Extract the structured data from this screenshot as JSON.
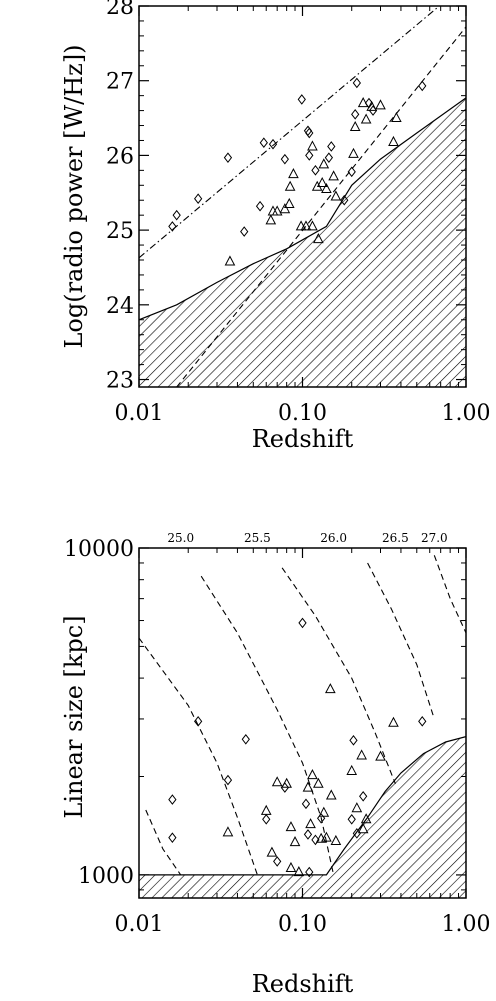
{
  "chart_data": [
    {
      "type": "scatter",
      "title": "",
      "xlabel": "Redshift",
      "ylabel": "Log(radio power [W/Hz])",
      "x_scale": "log",
      "xlim": [
        0.01,
        1.0
      ],
      "ylim": [
        22.9,
        28.0
      ],
      "x_ticks": [
        0.01,
        0.1,
        1.0
      ],
      "x_tick_labels": [
        "0.01",
        "0.10",
        "1.00"
      ],
      "y_ticks": [
        23,
        24,
        25,
        26,
        27,
        28
      ],
      "y_tick_labels": [
        "23",
        "24",
        "25",
        "26",
        "27",
        "28"
      ],
      "series": [
        {
          "marker": "diamond",
          "points": [
            [
              0.016,
              25.05
            ],
            [
              0.017,
              25.2
            ],
            [
              0.023,
              25.42
            ],
            [
              0.035,
              25.97
            ],
            [
              0.044,
              24.98
            ],
            [
              0.055,
              25.32
            ],
            [
              0.058,
              26.17
            ],
            [
              0.066,
              26.15
            ],
            [
              0.078,
              25.95
            ],
            [
              0.099,
              26.75
            ],
            [
              0.108,
              26.33
            ],
            [
              0.11,
              26.3
            ],
            [
              0.11,
              26.0
            ],
            [
              0.12,
              25.8
            ],
            [
              0.145,
              25.97
            ],
            [
              0.15,
              26.12
            ],
            [
              0.18,
              25.4
            ],
            [
              0.2,
              25.78
            ],
            [
              0.21,
              26.55
            ],
            [
              0.215,
              26.97
            ],
            [
              0.255,
              26.7
            ],
            [
              0.27,
              26.6
            ],
            [
              0.54,
              26.93
            ]
          ]
        },
        {
          "marker": "triangle",
          "points": [
            [
              0.036,
              24.58
            ],
            [
              0.064,
              25.13
            ],
            [
              0.066,
              25.25
            ],
            [
              0.07,
              25.25
            ],
            [
              0.078,
              25.28
            ],
            [
              0.083,
              25.35
            ],
            [
              0.084,
              25.58
            ],
            [
              0.088,
              25.75
            ],
            [
              0.098,
              25.05
            ],
            [
              0.105,
              25.05
            ],
            [
              0.115,
              25.05
            ],
            [
              0.115,
              26.12
            ],
            [
              0.123,
              25.58
            ],
            [
              0.125,
              24.88
            ],
            [
              0.132,
              25.63
            ],
            [
              0.135,
              25.88
            ],
            [
              0.14,
              25.55
            ],
            [
              0.155,
              25.72
            ],
            [
              0.16,
              25.45
            ],
            [
              0.205,
              26.02
            ],
            [
              0.21,
              26.38
            ],
            [
              0.235,
              26.7
            ],
            [
              0.245,
              26.48
            ],
            [
              0.265,
              26.65
            ],
            [
              0.3,
              26.67
            ],
            [
              0.36,
              26.18
            ],
            [
              0.375,
              26.5
            ]
          ]
        }
      ],
      "lines": [
        {
          "style": "dashdot",
          "points": [
            [
              0.01,
              24.63
            ],
            [
              1.0,
              28.3
            ]
          ]
        },
        {
          "style": "dashed",
          "points": [
            [
              0.017,
              22.9
            ],
            [
              1.0,
              27.72
            ]
          ]
        },
        {
          "style": "solid",
          "points": [
            [
              0.01,
              23.8
            ],
            [
              0.017,
              24.0
            ],
            [
              0.03,
              24.3
            ],
            [
              0.05,
              24.55
            ],
            [
              0.08,
              24.75
            ],
            [
              0.14,
              25.05
            ],
            [
              0.2,
              25.6
            ],
            [
              0.3,
              25.95
            ],
            [
              0.5,
              26.3
            ],
            [
              1.0,
              26.77
            ]
          ]
        }
      ],
      "shaded_region": "below solid line (hatched)"
    },
    {
      "type": "scatter",
      "title": "",
      "xlabel": "Redshift",
      "ylabel": "Linear size [kpc]",
      "x_scale": "log",
      "y_scale": "log",
      "xlim": [
        0.01,
        1.0
      ],
      "ylim": [
        850,
        10000
      ],
      "x_ticks": [
        0.01,
        0.1,
        1.0
      ],
      "x_tick_labels": [
        "0.01",
        "0.10",
        "1.00"
      ],
      "y_ticks": [
        1000,
        10000
      ],
      "y_tick_labels": [
        "1000",
        "10000"
      ],
      "contour_labels": [
        {
          "text": "25.0",
          "x": 0.018
        },
        {
          "text": "25.5",
          "x": 0.053
        },
        {
          "text": "26.0",
          "x": 0.155
        },
        {
          "text": "26.5",
          "x": 0.37
        },
        {
          "text": "27.0",
          "x": 0.64
        }
      ],
      "series": [
        {
          "marker": "diamond",
          "points": [
            [
              0.016,
              1700
            ],
            [
              0.016,
              1300
            ],
            [
              0.023,
              2950
            ],
            [
              0.035,
              1950
            ],
            [
              0.045,
              2600
            ],
            [
              0.06,
              1480
            ],
            [
              0.07,
              1100
            ],
            [
              0.078,
              1850
            ],
            [
              0.1,
              5900
            ],
            [
              0.105,
              1650
            ],
            [
              0.108,
              1330
            ],
            [
              0.11,
              1020
            ],
            [
              0.12,
              1280
            ],
            [
              0.13,
              1490
            ],
            [
              0.205,
              2580
            ],
            [
              0.2,
              1480
            ],
            [
              0.215,
              1340
            ],
            [
              0.235,
              1740
            ],
            [
              0.54,
              2950
            ]
          ]
        },
        {
          "marker": "triangle",
          "points": [
            [
              0.035,
              1350
            ],
            [
              0.06,
              1570
            ],
            [
              0.065,
              1170
            ],
            [
              0.07,
              1920
            ],
            [
              0.08,
              1900
            ],
            [
              0.085,
              1400
            ],
            [
              0.085,
              1050
            ],
            [
              0.095,
              1020
            ],
            [
              0.09,
              1260
            ],
            [
              0.108,
              1850
            ],
            [
              0.112,
              1430
            ],
            [
              0.115,
              2020
            ],
            [
              0.125,
              1900
            ],
            [
              0.13,
              1290
            ],
            [
              0.135,
              1550
            ],
            [
              0.14,
              1300
            ],
            [
              0.148,
              3700
            ],
            [
              0.15,
              1750
            ],
            [
              0.16,
              1270
            ],
            [
              0.2,
              2080
            ],
            [
              0.215,
              1600
            ],
            [
              0.23,
              2320
            ],
            [
              0.235,
              1380
            ],
            [
              0.245,
              1480
            ],
            [
              0.3,
              2300
            ],
            [
              0.36,
              2920
            ]
          ]
        }
      ],
      "curves": [
        {
          "style": "dashed",
          "points": [
            [
              0.011,
              1580
            ],
            [
              0.014,
              1200
            ],
            [
              0.018,
              1000
            ]
          ]
        },
        {
          "style": "dashed",
          "points": [
            [
              0.01,
              5300
            ],
            [
              0.02,
              3300
            ],
            [
              0.03,
              2200
            ],
            [
              0.04,
              1500
            ],
            [
              0.053,
              1000
            ]
          ]
        },
        {
          "style": "dashed",
          "points": [
            [
              0.024,
              8200
            ],
            [
              0.04,
              5500
            ],
            [
              0.07,
              3200
            ],
            [
              0.1,
              2200
            ],
            [
              0.13,
              1500
            ],
            [
              0.155,
              1000
            ]
          ]
        },
        {
          "style": "dashed",
          "points": [
            [
              0.075,
              8700
            ],
            [
              0.12,
              6200
            ],
            [
              0.2,
              4000
            ],
            [
              0.28,
              2700
            ],
            [
              0.37,
              1900
            ]
          ]
        },
        {
          "style": "dashed",
          "points": [
            [
              0.25,
              9000
            ],
            [
              0.35,
              6500
            ],
            [
              0.5,
              4400
            ],
            [
              0.64,
              3000
            ]
          ]
        },
        {
          "style": "dashed",
          "points": [
            [
              0.64,
              9500
            ],
            [
              0.8,
              7000
            ],
            [
              1.0,
              5500
            ]
          ]
        }
      ],
      "boundary": [
        [
          0.01,
          1000
        ],
        [
          0.14,
          1000
        ],
        [
          0.18,
          1200
        ],
        [
          0.25,
          1500
        ],
        [
          0.32,
          1800
        ],
        [
          0.4,
          2050
        ],
        [
          0.55,
          2350
        ],
        [
          0.75,
          2550
        ],
        [
          1.0,
          2650
        ]
      ],
      "shaded_region": "below solid boundary (hatched)"
    }
  ]
}
